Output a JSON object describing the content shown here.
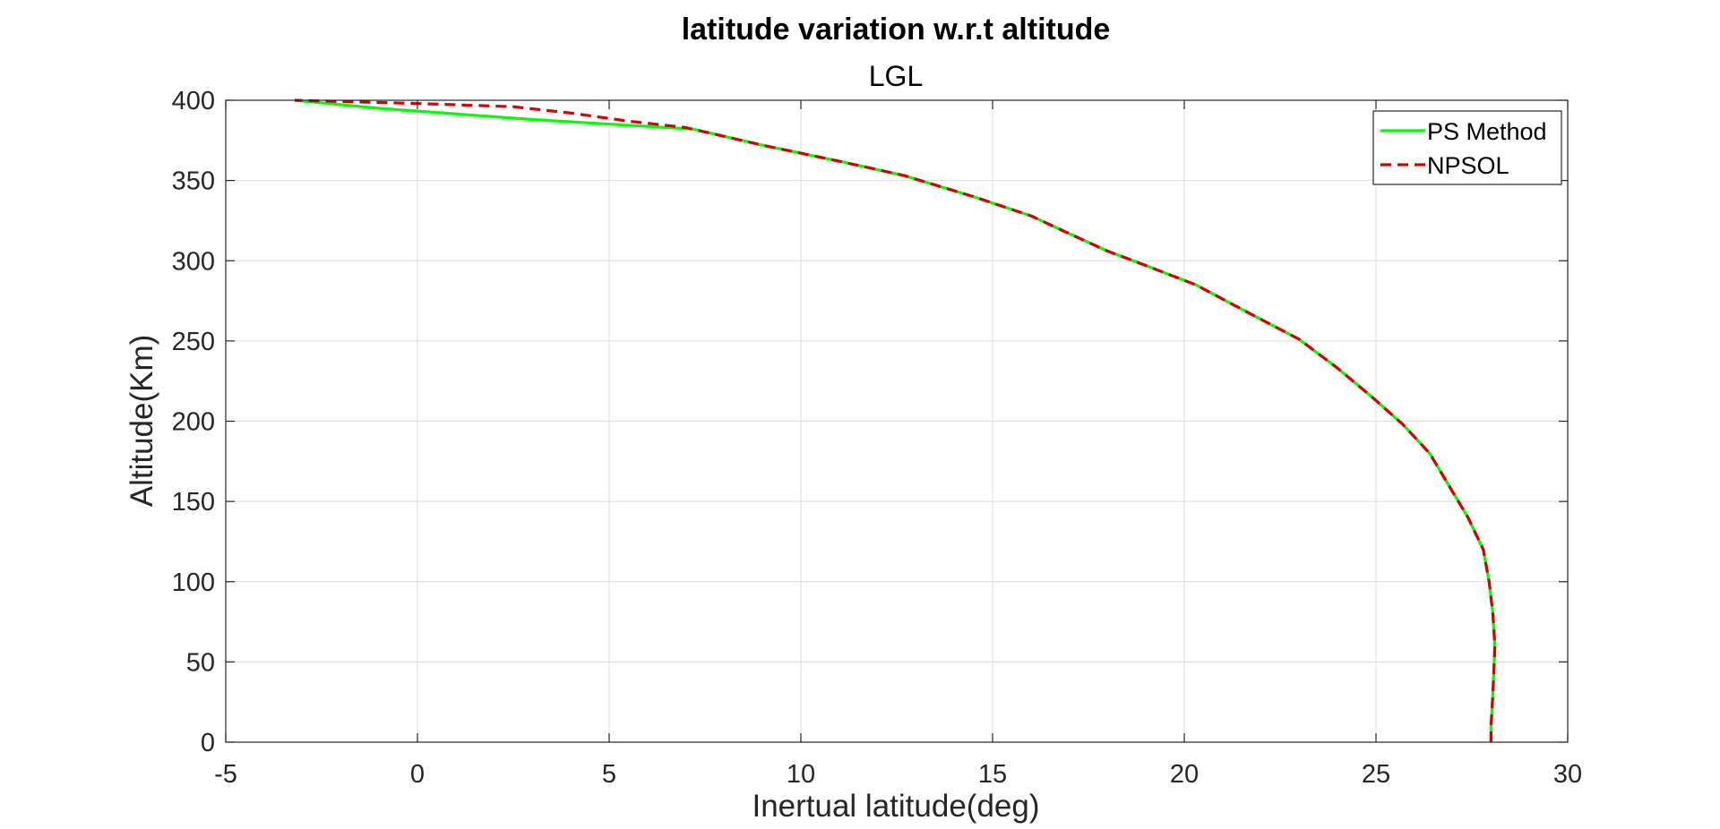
{
  "chart_data": {
    "type": "line",
    "title": "latitude variation w.r.t altitude",
    "subtitle": "LGL",
    "xlabel": "Inertual latitude(deg)",
    "ylabel": "Altitude(Km)",
    "xlim": [
      -5,
      30
    ],
    "ylim": [
      0,
      400
    ],
    "xticks": [
      "-5",
      "0",
      "5",
      "10",
      "15",
      "20",
      "25",
      "30"
    ],
    "yticks": [
      "0",
      "50",
      "100",
      "150",
      "200",
      "250",
      "300",
      "350",
      "400"
    ],
    "grid": true,
    "legend_position": "top-right",
    "series": [
      {
        "name": "PS Method",
        "color": "#00ff00",
        "style": "solid",
        "points": [
          [
            28.0,
            0
          ],
          [
            28.0,
            10
          ],
          [
            28.05,
            30
          ],
          [
            28.1,
            60
          ],
          [
            28.05,
            80
          ],
          [
            27.95,
            100
          ],
          [
            27.8,
            120
          ],
          [
            27.4,
            140
          ],
          [
            26.9,
            160
          ],
          [
            26.4,
            180
          ],
          [
            25.7,
            198
          ],
          [
            24.9,
            215
          ],
          [
            24.0,
            233
          ],
          [
            23.0,
            251
          ],
          [
            21.8,
            266
          ],
          [
            20.3,
            285
          ],
          [
            19.0,
            297
          ],
          [
            18.0,
            306
          ],
          [
            16.9,
            318
          ],
          [
            16.0,
            328
          ],
          [
            14.5,
            340
          ],
          [
            12.7,
            353
          ],
          [
            11.0,
            362
          ],
          [
            9.0,
            372
          ],
          [
            7.2,
            382
          ],
          [
            3.0,
            388
          ],
          [
            -1.0,
            395
          ],
          [
            -3.2,
            400
          ]
        ]
      },
      {
        "name": "NPSOL",
        "color": "#d40000",
        "style": "dashed",
        "points": [
          [
            28.0,
            0
          ],
          [
            28.0,
            10
          ],
          [
            28.05,
            30
          ],
          [
            28.1,
            60
          ],
          [
            28.05,
            80
          ],
          [
            27.95,
            100
          ],
          [
            27.8,
            120
          ],
          [
            27.4,
            140
          ],
          [
            26.9,
            160
          ],
          [
            26.4,
            180
          ],
          [
            25.7,
            198
          ],
          [
            24.9,
            215
          ],
          [
            24.0,
            233
          ],
          [
            23.0,
            251
          ],
          [
            21.8,
            266
          ],
          [
            20.3,
            285
          ],
          [
            19.0,
            297
          ],
          [
            18.0,
            306
          ],
          [
            16.9,
            318
          ],
          [
            16.0,
            328
          ],
          [
            14.5,
            340
          ],
          [
            12.7,
            353
          ],
          [
            11.0,
            362
          ],
          [
            9.0,
            372
          ],
          [
            7.0,
            383
          ],
          [
            5.5,
            387
          ],
          [
            4.0,
            392
          ],
          [
            2.5,
            396
          ],
          [
            0.0,
            398
          ],
          [
            -3.2,
            400
          ]
        ]
      }
    ]
  }
}
